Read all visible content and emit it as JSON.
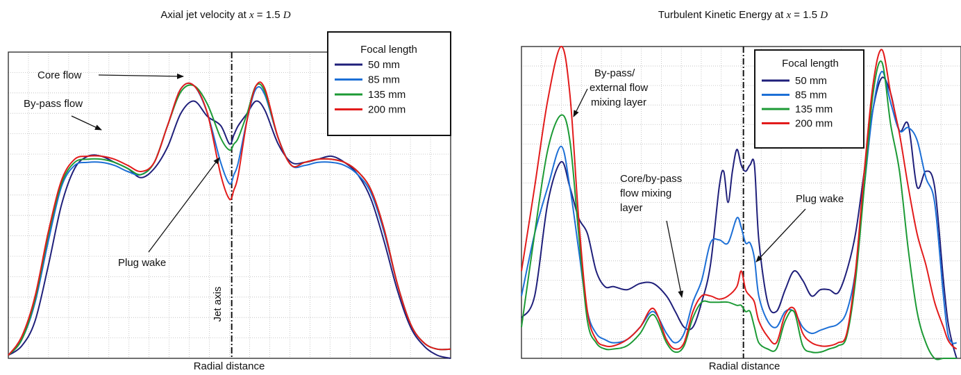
{
  "colors": {
    "series": [
      "#1f1f7a",
      "#1c6fd6",
      "#1c9a35",
      "#e21b1b"
    ],
    "grid": "#b8b8b8",
    "frame": "#333333",
    "axis_line": "#111111",
    "annotation": "#111111"
  },
  "chart_data": [
    {
      "type": "line",
      "title": {
        "prefix": "Axial jet velocity at ",
        "var": "x",
        "eq": " = 1.5 ",
        "unit": "D"
      },
      "xlabel": "Radial distance",
      "ylabel": "",
      "xlim": [
        0,
        100
      ],
      "ylim": [
        0,
        100
      ],
      "grid": true,
      "legend_position": "top-right",
      "legend_title": "Focal length",
      "jet_axis_x": 50.5,
      "series": [
        {
          "name": "50 mm",
          "x": [
            0,
            3,
            6,
            9,
            12,
            15,
            18,
            21,
            24,
            27,
            30,
            33,
            36,
            39,
            42,
            45,
            48,
            50,
            51,
            52,
            54,
            56,
            58,
            61,
            64,
            67,
            70,
            73,
            76,
            79,
            82,
            85,
            88,
            91,
            94,
            97,
            100
          ],
          "y": [
            1,
            4,
            12,
            30,
            50,
            62,
            66,
            66,
            64,
            62,
            59,
            62,
            69,
            80,
            84,
            79,
            76,
            70,
            73,
            76,
            80,
            84,
            81,
            70,
            64,
            64,
            65,
            66,
            64,
            60,
            52,
            38,
            22,
            10,
            4,
            1,
            0
          ]
        },
        {
          "name": "85 mm",
          "x": [
            0,
            3,
            6,
            9,
            12,
            15,
            18,
            21,
            24,
            27,
            30,
            33,
            36,
            39,
            42,
            45,
            48,
            50,
            51,
            52,
            54,
            56,
            58,
            61,
            64,
            67,
            70,
            73,
            76,
            79,
            82,
            85,
            88,
            91,
            94,
            97,
            100
          ],
          "y": [
            1,
            6,
            18,
            38,
            56,
            63,
            64,
            64,
            63,
            61,
            60,
            64,
            76,
            88,
            89,
            80,
            64,
            57,
            60,
            64,
            78,
            88,
            86,
            72,
            63,
            63,
            64,
            64,
            63,
            60,
            54,
            41,
            24,
            11,
            5,
            3,
            3
          ]
        },
        {
          "name": "135 mm",
          "x": [
            0,
            3,
            6,
            9,
            12,
            15,
            18,
            21,
            24,
            27,
            30,
            33,
            36,
            39,
            42,
            45,
            48,
            50,
            51,
            52,
            54,
            56,
            58,
            61,
            64,
            67,
            70,
            73,
            76,
            79,
            82,
            85,
            88,
            91,
            94,
            97,
            100
          ],
          "y": [
            1,
            6,
            19,
            40,
            57,
            64,
            65,
            65,
            64,
            62,
            60,
            64,
            76,
            87,
            89,
            83,
            72,
            68,
            70,
            72,
            80,
            89,
            87,
            72,
            63,
            64,
            65,
            65,
            64,
            61,
            55,
            42,
            24,
            11,
            5,
            3,
            3
          ]
        },
        {
          "name": "200 mm",
          "x": [
            0,
            3,
            6,
            9,
            12,
            15,
            18,
            21,
            24,
            27,
            30,
            33,
            36,
            39,
            42,
            45,
            48,
            50,
            51,
            52,
            54,
            56,
            58,
            61,
            64,
            67,
            70,
            73,
            76,
            79,
            82,
            85,
            88,
            91,
            94,
            97,
            100
          ],
          "y": [
            1,
            7,
            20,
            41,
            58,
            65,
            66,
            66,
            65,
            63,
            61,
            64,
            76,
            88,
            89,
            80,
            60,
            52,
            55,
            60,
            78,
            89,
            88,
            72,
            63,
            64,
            65,
            65,
            64,
            61,
            55,
            42,
            24,
            11,
            5,
            3,
            3
          ]
        }
      ],
      "annotations": [
        "Core flow",
        "By-pass flow",
        "Plug wake",
        "Jet axis"
      ]
    },
    {
      "type": "line",
      "title": {
        "prefix": "Turbulent Kinetic Energy at ",
        "var": "x",
        "eq": " = 1.5 ",
        "unit": "D"
      },
      "xlabel": "Radial distance",
      "ylabel": "",
      "xlim": [
        0,
        100
      ],
      "ylim": [
        0,
        100
      ],
      "grid": true,
      "legend_position": "top-center",
      "legend_title": "Focal length",
      "jet_axis_x": 50.5,
      "series": [
        {
          "name": "50 mm",
          "x": [
            0,
            3,
            6,
            9,
            11,
            13,
            15,
            17,
            19,
            21,
            24,
            27,
            30,
            33,
            35,
            37,
            39,
            41,
            43,
            45,
            46,
            47,
            48,
            49,
            50,
            51,
            52,
            53,
            54,
            56,
            58,
            60,
            62,
            64,
            66,
            68,
            70,
            72,
            74,
            76,
            78,
            80,
            82,
            84,
            86,
            88,
            90,
            92,
            94,
            96,
            97,
            98,
            99
          ],
          "y": [
            13,
            20,
            50,
            63,
            55,
            45,
            40,
            28,
            23,
            23,
            22,
            24,
            24,
            20,
            15,
            10,
            10,
            18,
            30,
            55,
            60,
            50,
            60,
            67,
            62,
            60,
            62,
            62,
            38,
            18,
            15,
            22,
            28,
            25,
            20,
            22,
            22,
            21,
            28,
            40,
            60,
            80,
            90,
            85,
            73,
            75,
            55,
            60,
            55,
            25,
            12,
            5,
            0
          ]
        },
        {
          "name": "85 mm",
          "x": [
            0,
            3,
            6,
            9,
            11,
            13,
            15,
            17,
            19,
            21,
            24,
            27,
            30,
            33,
            35,
            37,
            39,
            41,
            43,
            45,
            47,
            49,
            50,
            51,
            52,
            53,
            54,
            56,
            58,
            60,
            62,
            64,
            66,
            68,
            70,
            72,
            74,
            76,
            78,
            80,
            82,
            84,
            86,
            88,
            90,
            92,
            94,
            96,
            97,
            98,
            99
          ],
          "y": [
            20,
            40,
            55,
            68,
            55,
            35,
            15,
            8,
            6,
            5,
            6,
            10,
            15,
            8,
            5,
            8,
            18,
            25,
            37,
            38,
            37,
            45,
            42,
            37,
            37,
            32,
            20,
            12,
            10,
            15,
            15,
            10,
            8,
            9,
            10,
            11,
            15,
            28,
            55,
            80,
            92,
            82,
            73,
            74,
            70,
            58,
            50,
            20,
            8,
            5,
            5
          ]
        },
        {
          "name": "135 mm",
          "x": [
            0,
            3,
            6,
            9,
            11,
            13,
            15,
            17,
            19,
            21,
            24,
            27,
            30,
            33,
            35,
            37,
            39,
            41,
            43,
            45,
            47,
            49,
            50,
            51,
            52,
            53,
            54,
            56,
            58,
            60,
            62,
            64,
            66,
            68,
            70,
            72,
            74,
            76,
            78,
            80,
            82,
            84,
            86,
            88,
            90,
            92,
            94,
            96,
            97,
            98,
            99
          ],
          "y": [
            10,
            40,
            67,
            78,
            70,
            40,
            12,
            5,
            3,
            3,
            4,
            8,
            14,
            5,
            2,
            4,
            13,
            18,
            18,
            18,
            18,
            17,
            17,
            15,
            15,
            10,
            5,
            3,
            3,
            12,
            15,
            4,
            2,
            2,
            3,
            4,
            7,
            25,
            55,
            85,
            95,
            75,
            60,
            35,
            15,
            5,
            0,
            0,
            0,
            0,
            0
          ]
        },
        {
          "name": "200 mm",
          "x": [
            0,
            3,
            6,
            9,
            11,
            13,
            15,
            17,
            19,
            21,
            24,
            27,
            30,
            33,
            35,
            37,
            39,
            41,
            43,
            45,
            47,
            49,
            50,
            51,
            52,
            53,
            54,
            56,
            58,
            60,
            62,
            64,
            66,
            68,
            70,
            72,
            74,
            76,
            78,
            80,
            82,
            84,
            86,
            88,
            90,
            92,
            94,
            96,
            97,
            98,
            99
          ],
          "y": [
            28,
            55,
            83,
            100,
            85,
            45,
            15,
            6,
            4,
            4,
            6,
            10,
            16,
            6,
            3,
            5,
            15,
            20,
            20,
            19,
            20,
            23,
            28,
            22,
            20,
            18,
            12,
            7,
            5,
            14,
            16,
            8,
            5,
            4,
            4,
            5,
            8,
            28,
            60,
            88,
            99,
            85,
            72,
            55,
            40,
            30,
            18,
            10,
            6,
            4,
            3
          ]
        }
      ],
      "annotations": [
        "By-pass/",
        "external flow",
        "mixing layer",
        "Core/by-pass",
        "flow mixing",
        "layer",
        "Plug wake"
      ]
    }
  ]
}
